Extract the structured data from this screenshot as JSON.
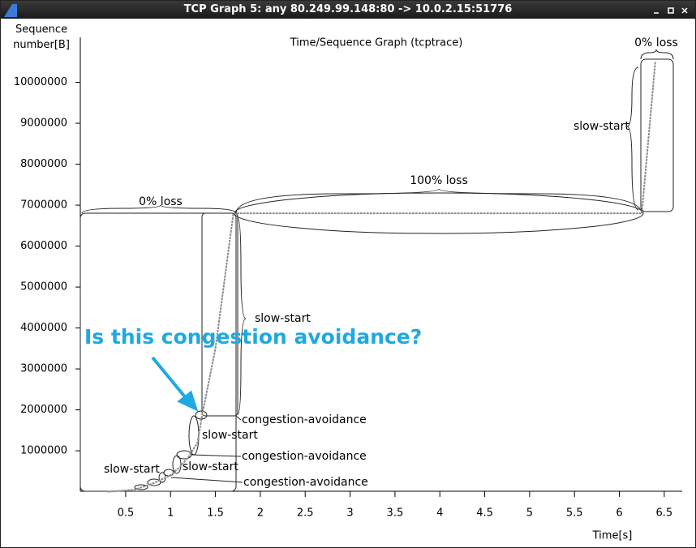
{
  "window": {
    "title": "TCP Graph 5: any 80.249.99.148:80 -> 10.0.2.15:51776"
  },
  "chart_data": {
    "type": "line",
    "title": "Time/Sequence Graph (tcptrace)",
    "x_label": "Time[s]",
    "y_label": "Sequence number[B]",
    "x": [
      0.3,
      0.6,
      0.8,
      1.0,
      1.1,
      1.2,
      1.3,
      1.35,
      1.5,
      1.7,
      6.25,
      6.4
    ],
    "series": [
      {
        "name": "Sequence",
        "color": "#8c8c8c",
        "values": [
          0,
          50000,
          200000,
          400000,
          600000,
          850000,
          1200000,
          1850000,
          3500000,
          6800000,
          6800000,
          10500000
        ]
      }
    ],
    "xlim": [
      0,
      6.7
    ],
    "ylim": [
      0,
      11100000
    ],
    "xticks": [
      0.5,
      1.0,
      1.5,
      2.0,
      2.5,
      3.0,
      3.5,
      4.0,
      4.5,
      5.0,
      5.5,
      6.0,
      6.5
    ],
    "yticks": [
      1000000,
      2000000,
      3000000,
      4000000,
      5000000,
      6000000,
      7000000,
      8000000,
      9000000,
      10000000
    ],
    "annotations": [
      "0% loss",
      "100% loss",
      "0% loss",
      "slow-start",
      "slow-start",
      "congestion-avoidance",
      "slow-start",
      "congestion-avoidance",
      "slow-start",
      "slow-start",
      "congestion-avoidance",
      "Is this congestion avoidance?"
    ]
  }
}
